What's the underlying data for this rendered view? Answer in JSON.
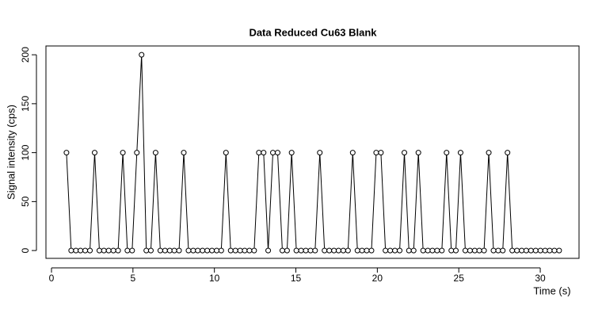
{
  "chart_data": {
    "type": "line",
    "title": "Data Reduced Cu63 Blank",
    "xlabel": "Time (s)",
    "ylabel": "Signal intensity (cps)",
    "x": [
      0.92,
      1.21,
      1.5,
      1.78,
      2.07,
      2.36,
      2.65,
      2.94,
      3.22,
      3.51,
      3.8,
      4.09,
      4.38,
      4.66,
      4.95,
      5.24,
      5.53,
      5.82,
      6.1,
      6.39,
      6.68,
      6.97,
      7.26,
      7.54,
      7.83,
      8.12,
      8.41,
      8.7,
      8.98,
      9.27,
      9.56,
      9.85,
      10.14,
      10.42,
      10.71,
      11.0,
      11.29,
      11.58,
      11.86,
      12.15,
      12.44,
      12.73,
      13.02,
      13.3,
      13.59,
      13.88,
      14.17,
      14.46,
      14.74,
      15.03,
      15.32,
      15.61,
      15.9,
      16.18,
      16.47,
      16.76,
      17.05,
      17.34,
      17.62,
      17.91,
      18.2,
      18.49,
      18.78,
      19.06,
      19.35,
      19.64,
      19.93,
      20.22,
      20.5,
      20.79,
      21.08,
      21.37,
      21.66,
      21.94,
      22.23,
      22.52,
      22.81,
      23.1,
      23.38,
      23.67,
      23.96,
      24.25,
      24.54,
      24.82,
      25.11,
      25.4,
      25.69,
      25.98,
      26.26,
      26.55,
      26.84,
      27.13,
      27.42,
      27.7,
      27.99,
      28.28,
      28.57,
      28.86,
      29.14,
      29.43,
      29.72,
      30.01,
      30.3,
      30.58,
      30.87,
      31.16
    ],
    "values": [
      100,
      0,
      0,
      0,
      0,
      0,
      100,
      0,
      0,
      0,
      0,
      0,
      100,
      0,
      0,
      100,
      200,
      0,
      0,
      100,
      0,
      0,
      0,
      0,
      0,
      100,
      0,
      0,
      0,
      0,
      0,
      0,
      0,
      0,
      100,
      0,
      0,
      0,
      0,
      0,
      0,
      100,
      100,
      0,
      100,
      100,
      0,
      0,
      100,
      0,
      0,
      0,
      0,
      0,
      100,
      0,
      0,
      0,
      0,
      0,
      0,
      100,
      0,
      0,
      0,
      0,
      100,
      100,
      0,
      0,
      0,
      0,
      100,
      0,
      0,
      100,
      0,
      0,
      0,
      0,
      0,
      100,
      0,
      0,
      100,
      0,
      0,
      0,
      0,
      0,
      100,
      0,
      0,
      0,
      100,
      0,
      0,
      0,
      0,
      0,
      0,
      0,
      0,
      0,
      0,
      0
    ],
    "color": "#000000",
    "xlim": [
      -0.34,
      32.38
    ],
    "xticks": [
      0,
      5,
      10,
      15,
      20,
      25,
      30
    ],
    "ylim": [
      -8,
      209
    ],
    "yticks": [
      0,
      50,
      100,
      150,
      200
    ]
  }
}
